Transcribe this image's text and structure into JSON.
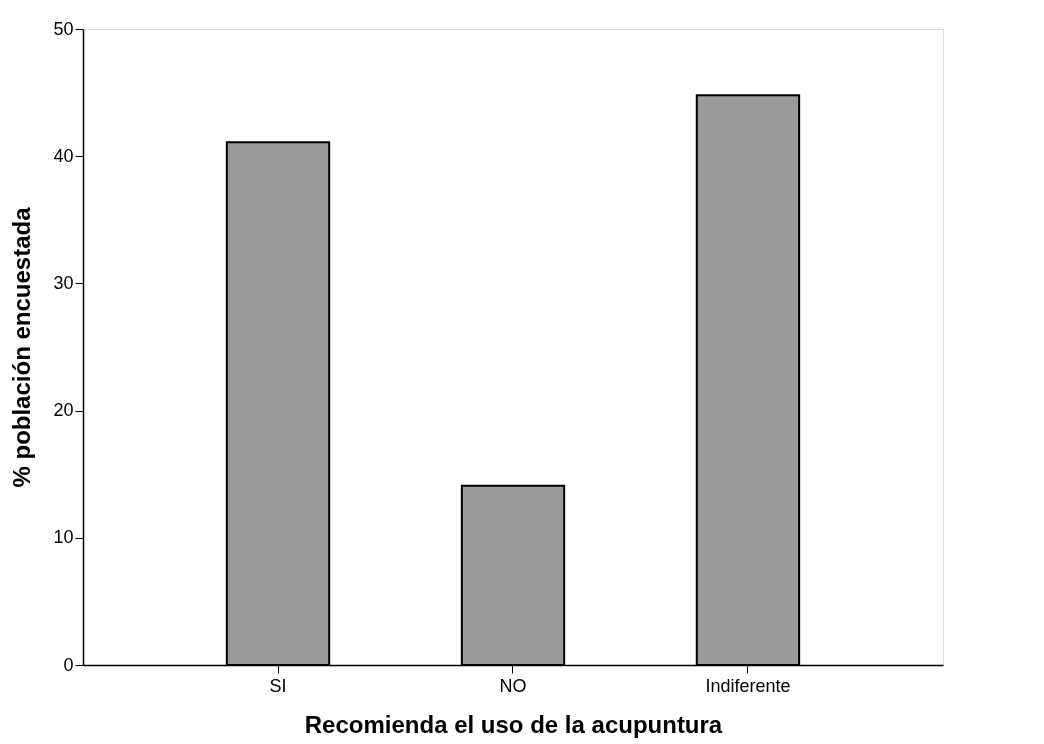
{
  "chart_data": {
    "type": "bar",
    "xlabel": "Recomienda el uso de la acupuntura",
    "ylabel": "% población encuestada",
    "categories": [
      "SI",
      "NO",
      "Indiferente"
    ],
    "values": [
      41.1,
      14.1,
      44.8
    ],
    "color": "#9a9a9a",
    "ylim": [
      0,
      50
    ],
    "yticks": [
      0,
      10,
      20,
      30,
      40,
      50
    ],
    "grid": false
  }
}
